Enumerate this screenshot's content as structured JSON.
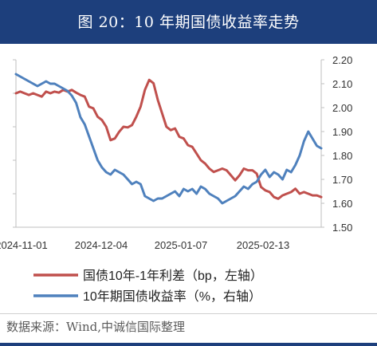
{
  "title": "图 20：10 年期国债收益率走势",
  "source": "数据来源：Wind,中诚信国际整理",
  "colors": {
    "header_bg": "#1d3f7c",
    "spread_line": "#c0504d",
    "yield_line": "#4f81bd"
  },
  "chart_data": {
    "type": "line",
    "title": "",
    "x_tick_labels": [
      "2024-11-01",
      "2024-12-04",
      "2025-01-07",
      "2025-02-13"
    ],
    "left_axis": {
      "label": "",
      "unit": "bp",
      "ylim": [
        50,
        100
      ],
      "tick_labels": [
        "",
        "",
        "",
        "",
        "",
        ""
      ]
    },
    "right_axis": {
      "label": "",
      "unit": "%",
      "ylim": [
        1.5,
        2.2
      ],
      "ticks": [
        "2.20",
        "2.10",
        "2.00",
        "1.90",
        "1.80",
        "1.70",
        "1.60",
        "1.50"
      ]
    },
    "legend_position": "bottom",
    "series": [
      {
        "name": "国债10年-1年利差（bp，左轴）",
        "axis": "left",
        "values": [
          90.0,
          90.5,
          90.0,
          89.5,
          90.0,
          89.5,
          89.0,
          90.5,
          90.0,
          90.5,
          90.2,
          91.0,
          90.5,
          91.0,
          90.2,
          89.5,
          89.0,
          86.0,
          85.5,
          83.0,
          82.0,
          80.0,
          76.0,
          76.5,
          78.5,
          80.0,
          79.8,
          80.5,
          83.0,
          86.0,
          91.0,
          94.0,
          93.0,
          88.0,
          84.0,
          80.0,
          79.0,
          79.5,
          77.0,
          76.5,
          74.5,
          74.0,
          72.0,
          70.0,
          69.0,
          67.5,
          66.5,
          67.0,
          67.5,
          67.0,
          65.5,
          64.0,
          65.5,
          67.5,
          67.0,
          67.0,
          66.0,
          62.0,
          61.0,
          60.5,
          59.0,
          58.5,
          59.5,
          60.0,
          60.5,
          61.5,
          60.0,
          60.5,
          60.0,
          59.5,
          59.5,
          59.0
        ],
        "x_positions": [
          0,
          1,
          2,
          3,
          4,
          5,
          6,
          7,
          8,
          9,
          10,
          11,
          12,
          13,
          14,
          15,
          16,
          17,
          18,
          19,
          20,
          21,
          22,
          23,
          24,
          25,
          26,
          27,
          28,
          29,
          30,
          31,
          32,
          33,
          34,
          35,
          36,
          37,
          38,
          39,
          40,
          41,
          42,
          43,
          44,
          45,
          46,
          47,
          48,
          49,
          50,
          51,
          52,
          53,
          54,
          55,
          56,
          57,
          58,
          59,
          60,
          61,
          62,
          63,
          64,
          65,
          66,
          67,
          68,
          69,
          70,
          71
        ]
      },
      {
        "name": "10年期国债收益率（%，右轴）",
        "axis": "right",
        "values": [
          2.14,
          2.13,
          2.12,
          2.11,
          2.1,
          2.09,
          2.1,
          2.11,
          2.1,
          2.1,
          2.09,
          2.08,
          2.07,
          2.05,
          2.02,
          1.96,
          1.93,
          1.88,
          1.83,
          1.78,
          1.75,
          1.73,
          1.72,
          1.74,
          1.73,
          1.72,
          1.7,
          1.68,
          1.69,
          1.68,
          1.63,
          1.62,
          1.61,
          1.62,
          1.62,
          1.63,
          1.64,
          1.65,
          1.63,
          1.66,
          1.65,
          1.66,
          1.64,
          1.67,
          1.66,
          1.64,
          1.63,
          1.62,
          1.6,
          1.61,
          1.62,
          1.63,
          1.65,
          1.67,
          1.66,
          1.68,
          1.69,
          1.72,
          1.74,
          1.71,
          1.73,
          1.72,
          1.7,
          1.74,
          1.73,
          1.76,
          1.8,
          1.86,
          1.9,
          1.87,
          1.84,
          1.83
        ],
        "x_positions": [
          0,
          1,
          2,
          3,
          4,
          5,
          6,
          7,
          8,
          9,
          10,
          11,
          12,
          13,
          14,
          15,
          16,
          17,
          18,
          19,
          20,
          21,
          22,
          23,
          24,
          25,
          26,
          27,
          28,
          29,
          30,
          31,
          32,
          33,
          34,
          35,
          36,
          37,
          38,
          39,
          40,
          41,
          42,
          43,
          44,
          45,
          46,
          47,
          48,
          49,
          50,
          51,
          52,
          53,
          54,
          55,
          56,
          57,
          58,
          59,
          60,
          61,
          62,
          63,
          64,
          65,
          66,
          67,
          68,
          69,
          70,
          71
        ]
      }
    ]
  }
}
